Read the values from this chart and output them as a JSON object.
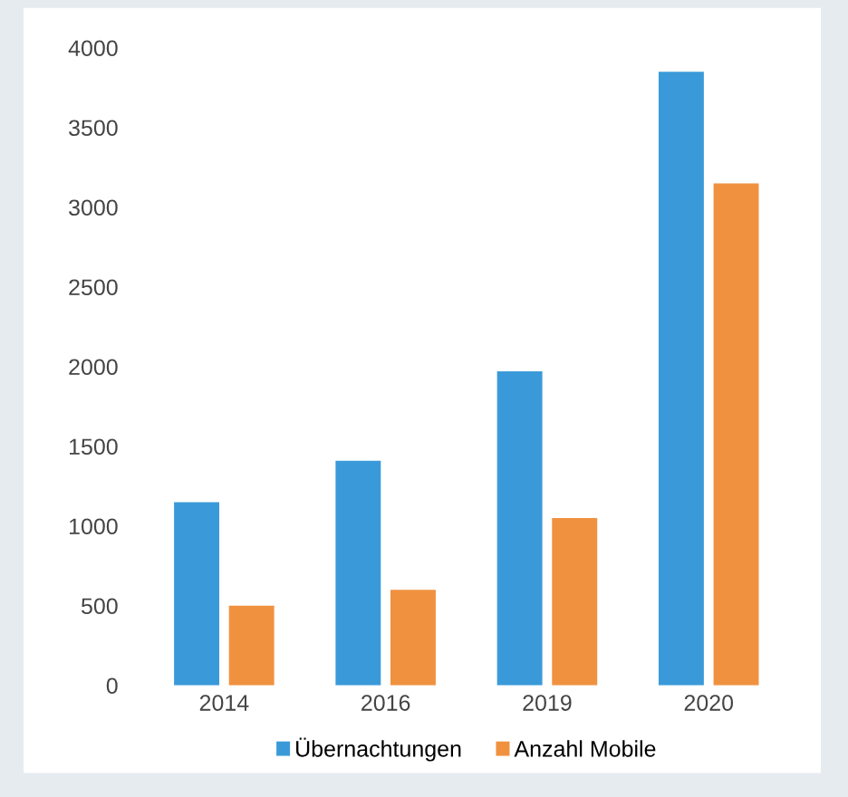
{
  "chart_data": {
    "type": "bar",
    "categories": [
      "2014",
      "2016",
      "2019",
      "2020"
    ],
    "series": [
      {
        "name": "Übernachtungen",
        "color": "#3a9ad9",
        "values": [
          1150,
          1410,
          1970,
          3850
        ]
      },
      {
        "name": "Anzahl Mobile",
        "color": "#f0913f",
        "values": [
          500,
          600,
          1050,
          3150
        ]
      }
    ],
    "ylim": [
      0,
      4000
    ],
    "yticks": [
      0,
      500,
      1000,
      1500,
      2000,
      2500,
      3000,
      3500,
      4000
    ],
    "grid": false,
    "legend": "bottom"
  }
}
